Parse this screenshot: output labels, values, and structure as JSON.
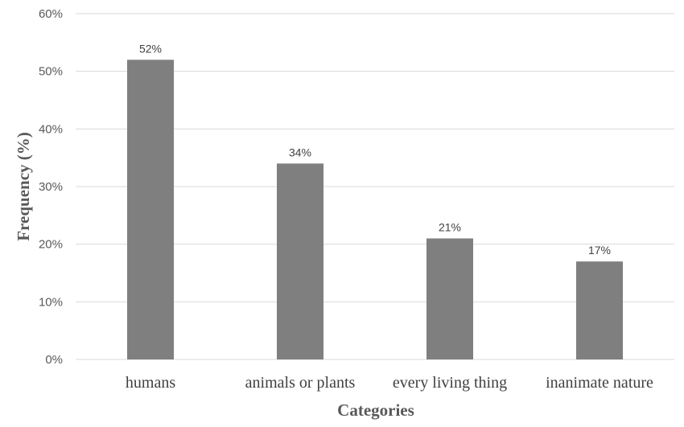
{
  "chart_data": {
    "type": "bar",
    "categories": [
      "humans",
      "animals or plants",
      "every living thing",
      "inanimate nature"
    ],
    "values": [
      52,
      34,
      21,
      17
    ],
    "data_labels": [
      "52%",
      "34%",
      "21%",
      "17%"
    ],
    "title": "",
    "xlabel": "Categories",
    "ylabel": "Frequency (%)",
    "ylim": [
      0,
      60
    ],
    "yticks": [
      0,
      10,
      20,
      30,
      40,
      50,
      60
    ],
    "ytick_labels": [
      "0%",
      "10%",
      "20%",
      "30%",
      "40%",
      "50%",
      "60%"
    ],
    "grid": true,
    "legend": "none",
    "colors": {
      "bar": "#7f7f7f",
      "grid": "#d9d9d9"
    }
  }
}
